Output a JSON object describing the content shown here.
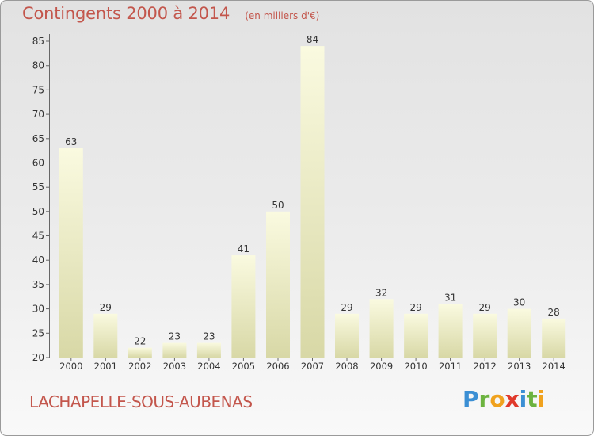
{
  "header": {
    "title": "Contingents 2000 à 2014",
    "subtitle": "(en milliers d'€)"
  },
  "footer": {
    "commune": "LACHAPELLE-SOUS-AUBENAS",
    "logo": "Proxiti"
  },
  "logo_letters": [
    {
      "char": "P",
      "color": "#3b8fd4"
    },
    {
      "char": "r",
      "color": "#6cb33f"
    },
    {
      "char": "o",
      "color": "#f0a21e"
    },
    {
      "char": "x",
      "color": "#e0392b"
    },
    {
      "char": "i",
      "color": "#3b8fd4"
    },
    {
      "char": "t",
      "color": "#6cb33f"
    },
    {
      "char": "i",
      "color": "#f0a21e"
    }
  ],
  "chart_data": {
    "type": "bar",
    "title": "Contingents 2000 à 2014",
    "subtitle": "(en milliers d'€)",
    "xlabel": "",
    "ylabel": "",
    "categories": [
      "2000",
      "2001",
      "2002",
      "2003",
      "2004",
      "2005",
      "2006",
      "2007",
      "2008",
      "2009",
      "2010",
      "2011",
      "2012",
      "2013",
      "2014"
    ],
    "values": [
      63,
      29,
      22,
      23,
      23,
      41,
      50,
      84,
      29,
      32,
      29,
      31,
      29,
      30,
      28
    ],
    "ylim": [
      20,
      85
    ],
    "yticks": [
      20,
      25,
      30,
      35,
      40,
      45,
      50,
      55,
      60,
      65,
      70,
      75,
      80,
      85
    ],
    "grid": false,
    "legend": "none",
    "colors": {
      "bar_top": "#fafae0",
      "bar_bottom": "#d8d8a6",
      "axis": "#666666"
    }
  }
}
